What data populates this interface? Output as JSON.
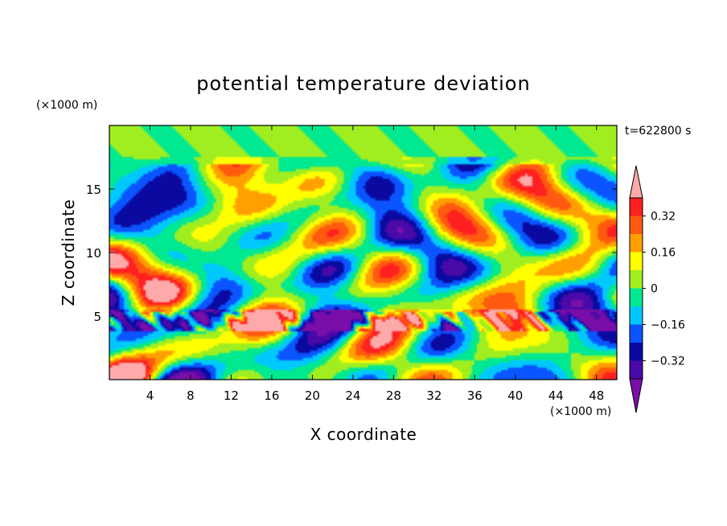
{
  "chart_data": {
    "type": "heatmap",
    "title": "potential temperature deviation",
    "time_label": "t=622800 s",
    "xlabel": "X coordinate",
    "ylabel": "Z coordinate",
    "x_unit": "(×1000 m)",
    "y_unit": "(×1000 m)",
    "xlim": [
      0,
      50
    ],
    "ylim": [
      0,
      20
    ],
    "x_ticks": [
      4,
      8,
      12,
      16,
      20,
      24,
      28,
      32,
      36,
      40,
      44,
      48
    ],
    "y_ticks": [
      5,
      10,
      15
    ],
    "colorbar": {
      "levels": [
        -0.4,
        -0.32,
        -0.24,
        -0.16,
        -0.08,
        0,
        0.08,
        0.16,
        0.24,
        0.32,
        0.4
      ],
      "tick_labels": [
        "0.32",
        "0.16",
        "0",
        "−0.16",
        "−0.32"
      ],
      "tick_values": [
        0.32,
        0.16,
        0,
        -0.16,
        -0.32
      ],
      "colors": [
        "#7a0ea8",
        "#4a0aa8",
        "#0a0aa0",
        "#0a55ff",
        "#00c8ff",
        "#00e890",
        "#a0ee20",
        "#ffff00",
        "#ffa000",
        "#ff5a10",
        "#ff2020",
        "#ffaaaa"
      ],
      "extend": "both"
    },
    "palette": {
      "over": "#ffaaaa",
      "under": "#7a0ea8"
    }
  }
}
